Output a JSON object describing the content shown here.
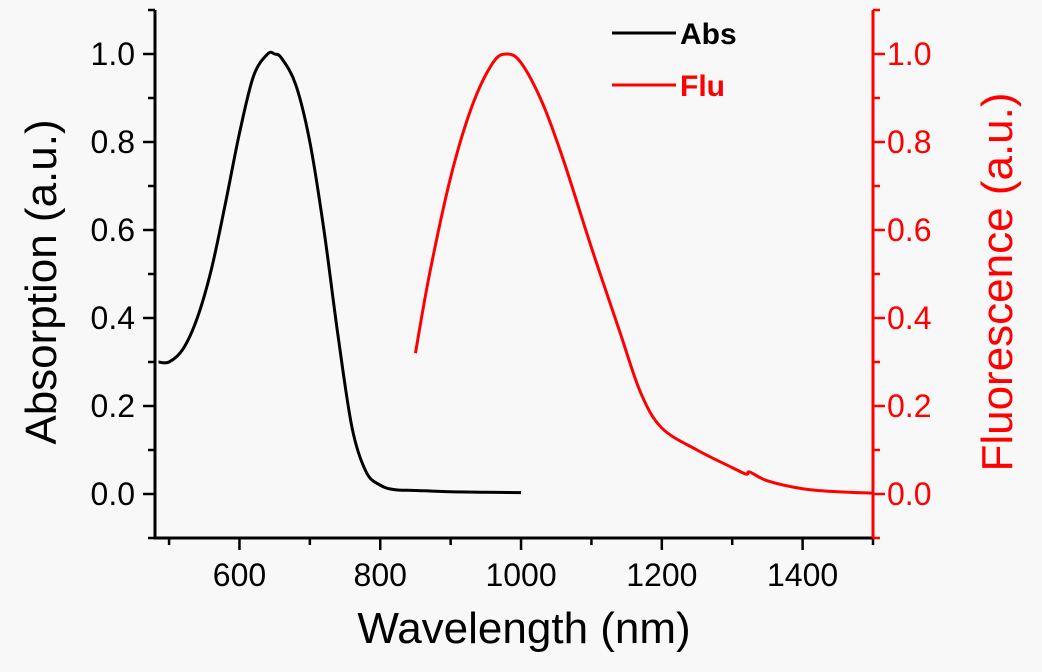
{
  "chart_data": {
    "type": "line",
    "xlabel": "Wavelength (nm)",
    "ylabel_left": "Absorption (a.u.)",
    "ylabel_right": "Fluorescence (a.u.)",
    "xlim": [
      480,
      1500
    ],
    "ylim_left": [
      -0.1,
      1.1
    ],
    "ylim_right": [
      -0.1,
      1.1
    ],
    "x_ticks": [
      600,
      800,
      1000,
      1200,
      1400
    ],
    "y_ticks": [
      0.0,
      0.2,
      0.4,
      0.6,
      0.8,
      1.0
    ],
    "y_tick_labels": [
      "0.0",
      "0.2",
      "0.4",
      "0.6",
      "0.8",
      "1.0"
    ],
    "grid": false,
    "legend_position": "top-right",
    "colors": {
      "abs": "#000000",
      "flu": "#ff0000"
    },
    "series": [
      {
        "name": "Abs",
        "axis": "left",
        "x": [
          485,
          500,
          520,
          540,
          560,
          580,
          600,
          620,
          640,
          650,
          660,
          680,
          700,
          720,
          740,
          760,
          780,
          800,
          820,
          850,
          900,
          950,
          1000
        ],
        "y": [
          0.3,
          0.3,
          0.33,
          0.4,
          0.51,
          0.66,
          0.82,
          0.95,
          1.0,
          1.0,
          0.99,
          0.93,
          0.8,
          0.6,
          0.36,
          0.15,
          0.05,
          0.02,
          0.01,
          0.008,
          0.005,
          0.004,
          0.003
        ]
      },
      {
        "name": "Flu",
        "axis": "right",
        "x": [
          850,
          870,
          900,
          930,
          960,
          980,
          1000,
          1030,
          1060,
          1100,
          1140,
          1170,
          1200,
          1250,
          1300,
          1320,
          1325,
          1350,
          1400,
          1450,
          1500
        ],
        "y": [
          0.32,
          0.5,
          0.72,
          0.88,
          0.98,
          1.0,
          0.98,
          0.89,
          0.76,
          0.56,
          0.37,
          0.23,
          0.15,
          0.1,
          0.06,
          0.045,
          0.05,
          0.03,
          0.012,
          0.005,
          0.002
        ]
      }
    ]
  }
}
